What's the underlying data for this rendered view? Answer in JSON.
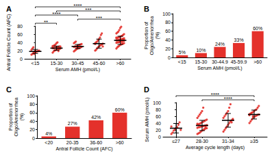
{
  "chart_data": [
    {
      "type": "dot",
      "title": "A",
      "color": "#e4312b",
      "categories": [
        "<15",
        "15-30",
        "30-45",
        "45-60",
        ">60"
      ],
      "values": [
        [
          10,
          12,
          14,
          15,
          16,
          17,
          18,
          19,
          20,
          22,
          25,
          28,
          12,
          20
        ],
        [
          15,
          18,
          20,
          21,
          22,
          23,
          24,
          25,
          25,
          26,
          26,
          27,
          27,
          28,
          28,
          29,
          30,
          30,
          31,
          32,
          33,
          35,
          38,
          40,
          19,
          24,
          27,
          29
        ],
        [
          18,
          20,
          22,
          24,
          25,
          26,
          27,
          28,
          29,
          29,
          30,
          30,
          31,
          32,
          33,
          34,
          35,
          36,
          38,
          40,
          42,
          27,
          31
        ],
        [
          20,
          22,
          25,
          28,
          30,
          32,
          34,
          35,
          37,
          38,
          40,
          42,
          45,
          48,
          52,
          58,
          62,
          30,
          36
        ],
        [
          25,
          28,
          30,
          32,
          34,
          35,
          36,
          37,
          38,
          39,
          40,
          40,
          41,
          42,
          42,
          43,
          44,
          44,
          45,
          45,
          46,
          46,
          47,
          48,
          48,
          49,
          50,
          50,
          51,
          52,
          53,
          54,
          55,
          56,
          58,
          60,
          62,
          64,
          66,
          70,
          75,
          78,
          38,
          44,
          47,
          52
        ]
      ],
      "mean": [
        18,
        26,
        30,
        37,
        45
      ],
      "sd": [
        5,
        5,
        5,
        11,
        10
      ],
      "xlabel": "Serum AMH (pmol/L)",
      "ylabel": "Antral Follicle Count (AFC)",
      "ylim": [
        0,
        80
      ],
      "yticks": [
        0,
        20,
        40,
        60,
        80
      ],
      "grid": false,
      "annotations": [
        {
          "from": "<15",
          "to": "15-30",
          "label": "**"
        },
        {
          "from": "30-45",
          "to": ">60",
          "label": "***"
        },
        {
          "from": "<15",
          "to": "30-45",
          "label": "****"
        },
        {
          "from": "15-30",
          "to": ">60",
          "label": "***"
        },
        {
          "from": "<15",
          "to": ">60",
          "label": "****"
        }
      ]
    },
    {
      "type": "bar",
      "title": "B",
      "color": "#e4312b",
      "categories": [
        "<15",
        "15-30",
        "30-44.9",
        "45-59.9",
        ">60"
      ],
      "values": [
        5,
        10,
        24,
        33,
        60
      ],
      "value_labels": [
        "5%",
        "10%",
        "24%",
        "33%",
        "60%"
      ],
      "data_labels": true,
      "xlabel": "Serum AMH (pmol/L)",
      "ylabel": "Proportion of\nOligo/Amenorrhea\n(%)",
      "ylim": [
        0,
        100
      ],
      "yticks": [
        0,
        20,
        40,
        60,
        80,
        100
      ],
      "grid": false
    },
    {
      "type": "bar",
      "title": "C",
      "color": "#e4312b",
      "categories": [
        "<20",
        "20-35",
        "36-60",
        ">60"
      ],
      "values": [
        4,
        27,
        42,
        60
      ],
      "value_labels": [
        "4%",
        "27%",
        "42%",
        "60%"
      ],
      "data_labels": true,
      "xlabel": "Antral Follicle Count (AFC)",
      "ylabel": "Proportion of\nOligo/Amenorrhea\n(%)",
      "ylim": [
        0,
        100
      ],
      "yticks": [
        0,
        20,
        40,
        60,
        80,
        100
      ],
      "grid": false
    },
    {
      "type": "dot",
      "title": "D",
      "color": "#e4312b",
      "categories": [
        "≤27",
        "28-30",
        "31-34",
        "≥35"
      ],
      "values": [
        [
          8,
          12,
          18,
          22,
          25,
          28,
          35,
          42,
          20,
          30
        ],
        [
          8,
          10,
          12,
          15,
          18,
          20,
          22,
          24,
          25,
          26,
          28,
          28,
          30,
          30,
          31,
          32,
          33,
          34,
          35,
          36,
          38,
          40,
          42,
          44,
          46,
          48,
          50,
          55,
          60,
          65,
          70,
          75,
          85,
          22,
          27,
          33,
          38
        ],
        [
          15,
          20,
          25,
          30,
          35,
          40,
          45,
          48,
          50,
          55,
          60,
          65,
          70,
          75,
          85,
          95,
          42,
          52
        ],
        [
          40,
          45,
          50,
          55,
          58,
          60,
          62,
          64,
          65,
          66,
          68,
          70,
          72,
          75,
          78,
          80,
          85,
          90,
          63,
          67,
          70,
          60
        ]
      ],
      "mean": [
        25,
        33,
        48,
        65
      ],
      "sd": [
        14,
        15,
        20,
        13
      ],
      "xlabel": "Average cycle length (days)",
      "ylabel": "Serum AMH (pmol/L)",
      "ylim": [
        0,
        100
      ],
      "yticks": [
        0,
        20,
        40,
        60,
        80,
        100
      ],
      "grid": false,
      "annotations": [
        {
          "from": "28-30",
          "to": "≥35",
          "label": "****"
        },
        {
          "from": "≤27",
          "to": "≥35",
          "label": "****"
        }
      ]
    }
  ]
}
